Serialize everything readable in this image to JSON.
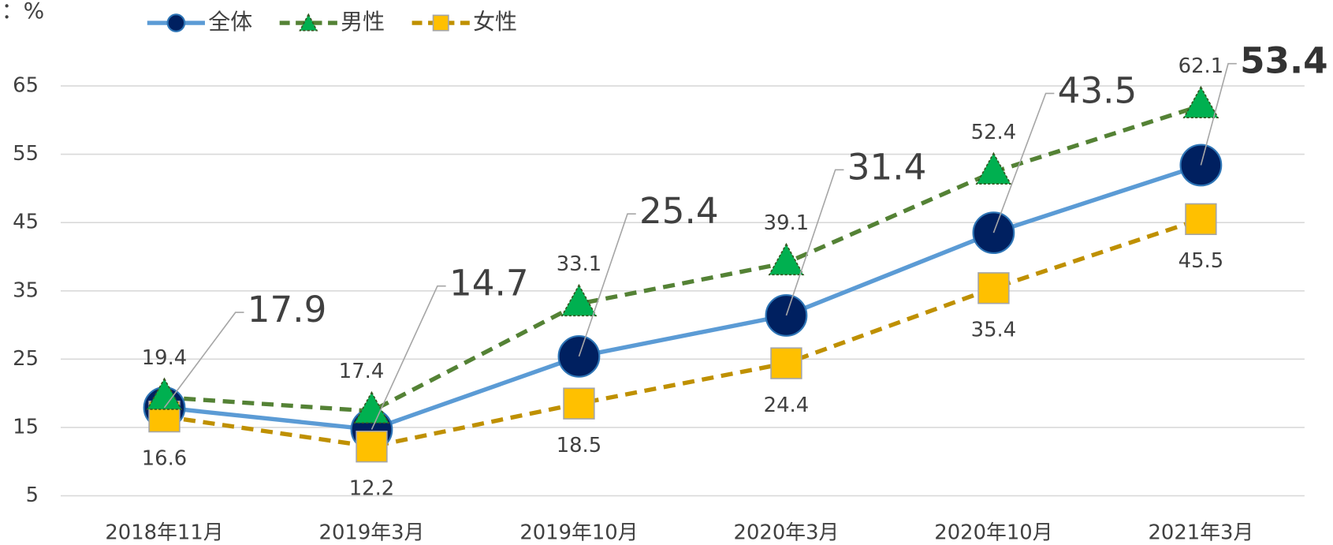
{
  "chart_data": {
    "type": "line",
    "unit_label": "：%",
    "categories": [
      "2018年11月",
      "2019年3月",
      "2019年10月",
      "2020年3月",
      "2020年10月",
      "2021年3月"
    ],
    "series": [
      {
        "name": "全体",
        "color": "#5b9bd5",
        "marker": "circle",
        "marker_color": "#002060",
        "values": [
          17.9,
          14.7,
          25.4,
          31.4,
          43.5,
          53.4
        ]
      },
      {
        "name": "男性",
        "color": "#548235",
        "marker": "triangle",
        "marker_color": "#00b050",
        "values": [
          19.4,
          17.4,
          33.1,
          39.1,
          52.4,
          62.1
        ]
      },
      {
        "name": "女性",
        "color": "#bf9000",
        "marker": "square",
        "marker_color": "#ffc000",
        "values": [
          16.6,
          12.2,
          18.5,
          24.4,
          35.4,
          45.5
        ]
      }
    ],
    "ylim": [
      5,
      70
    ],
    "yticks": [
      5,
      15,
      25,
      35,
      45,
      55,
      65
    ],
    "grid": true,
    "legend": "top"
  }
}
